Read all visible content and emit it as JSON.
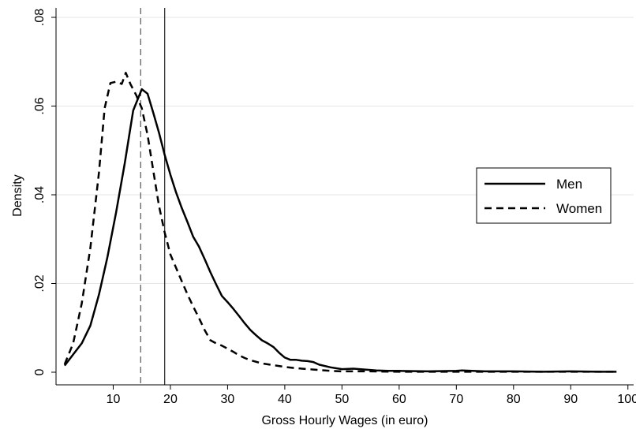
{
  "chart_data": {
    "type": "line",
    "xlabel": "Gross Hourly Wages (in euro)",
    "ylabel": "Density",
    "xlim": [
      0,
      101
    ],
    "ylim": [
      0,
      0.08
    ],
    "x_ticks": [
      10,
      20,
      30,
      40,
      50,
      60,
      70,
      80,
      90,
      100
    ],
    "x_tick_labels": [
      "10",
      "20",
      "30",
      "40",
      "50",
      "60",
      "70",
      "80",
      "90",
      "100"
    ],
    "y_ticks": [
      0,
      0.02,
      0.04,
      0.06,
      0.08
    ],
    "y_tick_labels": [
      "0",
      ".02",
      ".04",
      ".06",
      ".08"
    ],
    "grid": "horizontal",
    "legend_position": "right",
    "series": [
      {
        "name": "Men",
        "style": "solid",
        "x": [
          1.5,
          3,
          4.5,
          6,
          7.5,
          9,
          10.5,
          12,
          13.5,
          15,
          16,
          17,
          18,
          19,
          20,
          21,
          22,
          23,
          24,
          25,
          26,
          27,
          28,
          29,
          30,
          31,
          32,
          33,
          34,
          35,
          36,
          37,
          38,
          39,
          40,
          41,
          42,
          43,
          44,
          45,
          46,
          48,
          50,
          52,
          54,
          56,
          58,
          60,
          65,
          70,
          71,
          75,
          80,
          85,
          90,
          95,
          98
        ],
        "values": [
          0.0015,
          0.004,
          0.0065,
          0.0105,
          0.0175,
          0.026,
          0.036,
          0.047,
          0.059,
          0.0638,
          0.0628,
          0.0585,
          0.054,
          0.049,
          0.0445,
          0.0405,
          0.037,
          0.0338,
          0.0305,
          0.0283,
          0.0255,
          0.0225,
          0.0198,
          0.0172,
          0.0158,
          0.0143,
          0.0127,
          0.011,
          0.0095,
          0.0083,
          0.0072,
          0.0065,
          0.0057,
          0.0044,
          0.0033,
          0.0028,
          0.0028,
          0.0026,
          0.0025,
          0.0023,
          0.0017,
          0.0011,
          0.0007,
          0.0008,
          0.0006,
          0.0004,
          0.0003,
          0.0003,
          0.0002,
          0.0003,
          0.0004,
          0.0002,
          0.0002,
          0.0001,
          0.0002,
          0.0001,
          0.0001
        ]
      },
      {
        "name": "Women",
        "style": "dashed",
        "x": [
          1.5,
          3,
          4.5,
          6,
          7.5,
          8.5,
          9.5,
          10.5,
          11.5,
          12.2,
          13,
          14,
          15,
          16,
          17,
          18,
          19,
          20,
          21,
          22,
          23,
          24,
          25,
          26,
          27,
          28,
          29,
          30,
          31,
          32,
          33,
          34,
          36,
          38,
          40,
          42,
          45,
          48,
          50,
          55,
          60,
          70,
          80,
          90,
          98
        ],
        "values": [
          0.0018,
          0.0065,
          0.0155,
          0.028,
          0.045,
          0.0595,
          0.0652,
          0.0655,
          0.065,
          0.0675,
          0.065,
          0.0625,
          0.0595,
          0.0535,
          0.0455,
          0.0375,
          0.0315,
          0.0265,
          0.0235,
          0.0205,
          0.0175,
          0.0148,
          0.0122,
          0.0095,
          0.0072,
          0.0065,
          0.006,
          0.0053,
          0.0046,
          0.0038,
          0.0032,
          0.0027,
          0.002,
          0.0016,
          0.0012,
          0.0009,
          0.0006,
          0.0003,
          0.0002,
          0.0002,
          0.0001,
          0.0001,
          0.0001,
          0.0001,
          0.0001
        ]
      }
    ],
    "reference_lines": [
      {
        "axis": "x",
        "value": 14.8,
        "style": "dashed"
      },
      {
        "axis": "x",
        "value": 19.0,
        "style": "solid"
      }
    ]
  }
}
